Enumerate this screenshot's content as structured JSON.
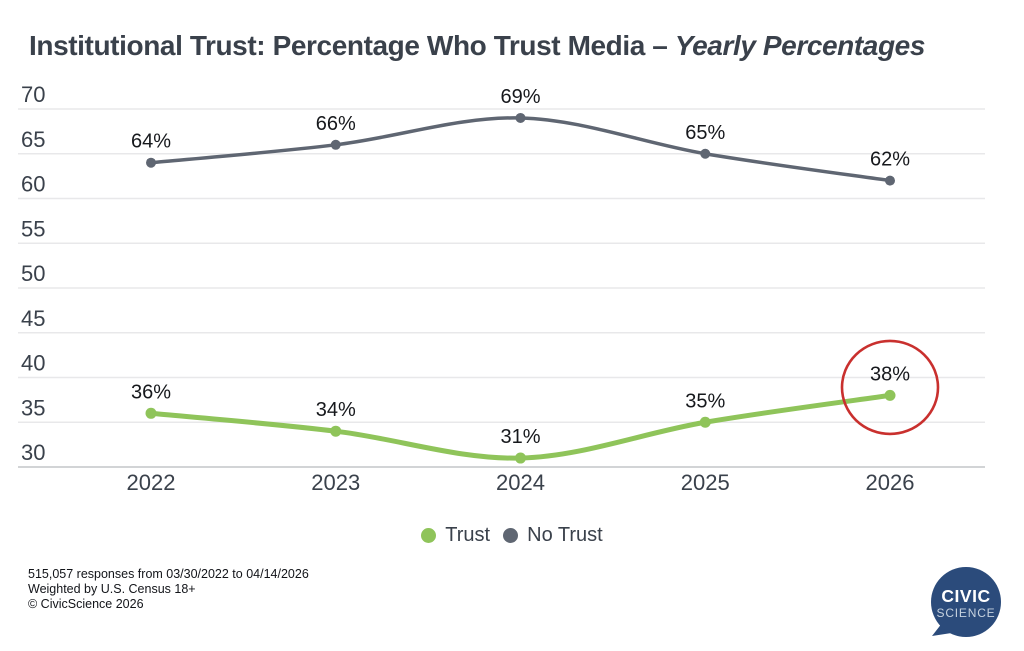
{
  "title": {
    "main": "Institutional Trust: Percentage Who Trust Media – ",
    "italic": "Yearly Percentages"
  },
  "chart_data": {
    "type": "line",
    "categories": [
      "2022",
      "2023",
      "2024",
      "2025",
      "2026"
    ],
    "series": [
      {
        "name": "No Trust",
        "values": [
          64,
          66,
          69,
          65,
          62
        ],
        "labels": [
          "64%",
          "66%",
          "69%",
          "65%",
          "62%"
        ],
        "color": "#5F6672"
      },
      {
        "name": "Trust",
        "values": [
          36,
          34,
          31,
          35,
          38
        ],
        "labels": [
          "36%",
          "34%",
          "31%",
          "35%",
          "38%"
        ],
        "color": "#8FC45A"
      }
    ],
    "yticks": [
      "30",
      "35",
      "40",
      "45",
      "50",
      "55",
      "60",
      "65",
      "70"
    ],
    "ylim": [
      30,
      70
    ],
    "grid": true,
    "legend_position": "bottom",
    "annotation": {
      "type": "circle-highlight",
      "series": "Trust",
      "category": "2026",
      "value": 38,
      "color": "#C9302E"
    }
  },
  "legend": {
    "items": [
      {
        "label": "Trust",
        "color": "#8FC45A"
      },
      {
        "label": "No Trust",
        "color": "#5F6672"
      }
    ]
  },
  "footer": {
    "lines": [
      "515,057 responses from 03/30/2022 to 04/14/2026",
      "Weighted by U.S. Census 18+",
      "© CivicScience 2026"
    ]
  },
  "logo": {
    "line1": "CIVIC",
    "line2": "SCIENCE",
    "bg": "#2B4B7B",
    "line1_color": "#FFFFFF",
    "line2_color": "#C6D2DF"
  }
}
